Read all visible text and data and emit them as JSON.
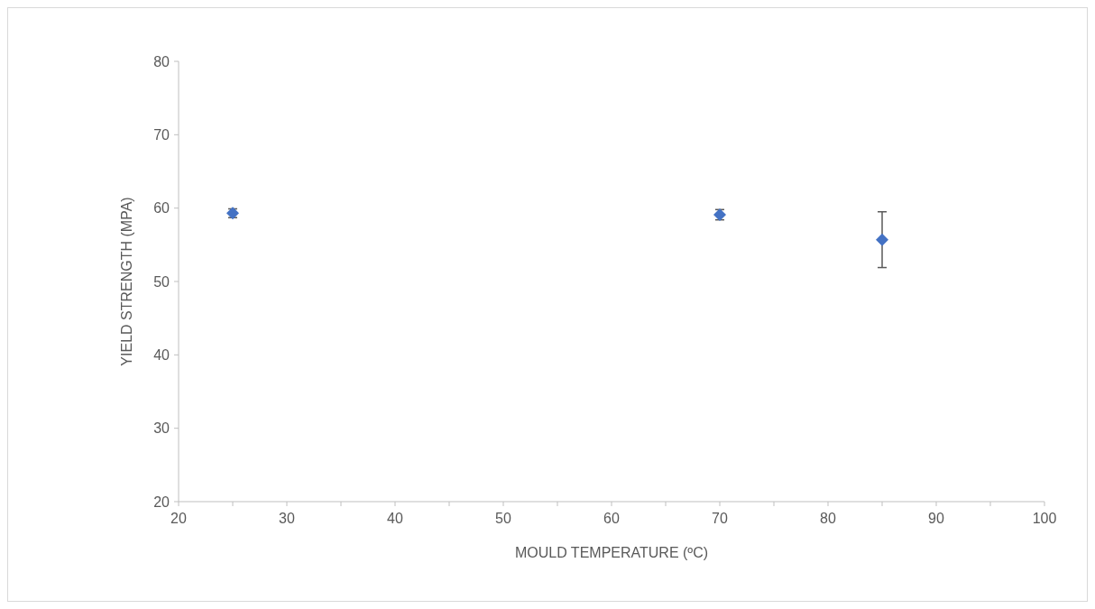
{
  "chart_data": {
    "type": "scatter",
    "xlabel": "MOULD TEMPERATURE (ºC)",
    "ylabel": "YIELD STRENGTH (MPA)",
    "x": [
      25,
      70,
      85
    ],
    "values": [
      59.3,
      59.1,
      55.7
    ],
    "errors": [
      0.6,
      0.7,
      3.8
    ],
    "color": "#4472c4",
    "marker": "diamond",
    "grid": false,
    "xlim": [
      20,
      100
    ],
    "ylim": [
      20,
      80
    ],
    "xticks": [
      20,
      {
        "value": 25,
        "label": null
      },
      30,
      {
        "value": 35,
        "label": null
      },
      40,
      {
        "value": 45,
        "label": null
      },
      50,
      {
        "value": 55,
        "label": null
      },
      60,
      {
        "value": 65,
        "label": null
      },
      70,
      {
        "value": 75,
        "label": null
      },
      80,
      {
        "value": 85,
        "label": null
      },
      90,
      {
        "value": 95,
        "label": null
      },
      100
    ],
    "yticks": [
      20,
      30,
      40,
      50,
      60,
      70,
      80
    ]
  }
}
